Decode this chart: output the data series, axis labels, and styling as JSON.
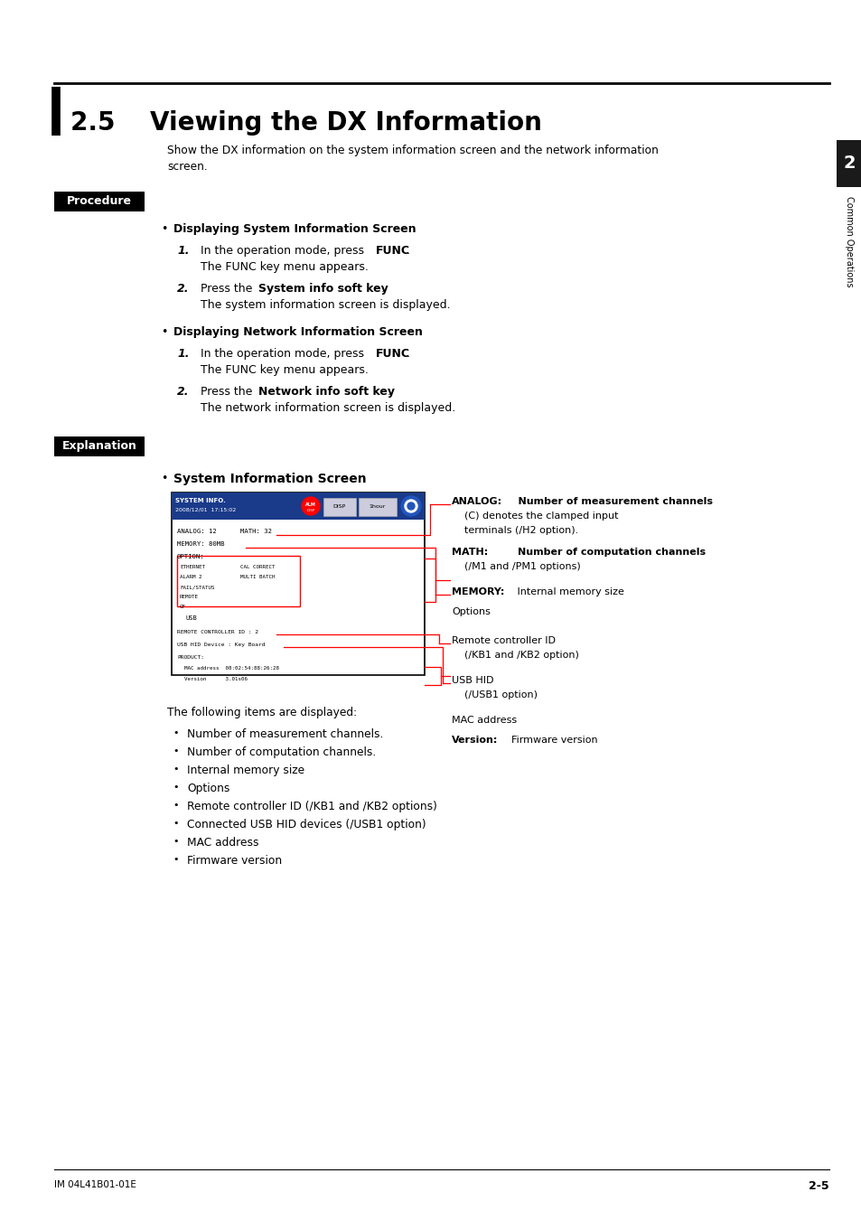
{
  "title": "2.5    Viewing the DX Information",
  "background_color": "#ffffff",
  "page_width": 9.54,
  "page_height": 13.5,
  "intro_text_line1": "Show the DX information on the system information screen and the network information",
  "intro_text_line2": "screen.",
  "procedure_label": "Procedure",
  "explanation_label": "Explanation",
  "bullet1_heading": "Displaying System Information Screen",
  "bullet2_heading": "Displaying Network Information Screen",
  "sys_info_heading": "System Information Screen",
  "following_items_text": "The following items are displayed:",
  "following_items": [
    "Number of measurement channels.",
    "Number of computation channels.",
    "Internal memory size",
    "Options",
    "Remote controller ID (/KB1 and /KB2 options)",
    "Connected USB HID devices (/USB1 option)",
    "MAC address",
    "Firmware version"
  ],
  "footer_left": "IM 04L41B01-01E",
  "footer_right": "2-5",
  "right_tab_number": "2",
  "right_tab_text": "Common Operations"
}
